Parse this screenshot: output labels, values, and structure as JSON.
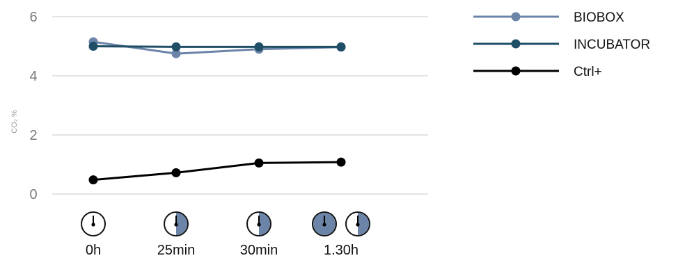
{
  "chart_data": {
    "type": "line",
    "xlabel": "",
    "ylabel": "CO₂ %",
    "ylim": [
      0,
      6
    ],
    "yticks": [
      0,
      2,
      4,
      6
    ],
    "grid": "horizontal",
    "legend": "top-right",
    "categories": [
      "0h",
      "25min",
      "30min",
      "1.30h"
    ],
    "series": [
      {
        "name": "BIOBOX",
        "color": "#6b84a8",
        "values": [
          5.15,
          4.75,
          4.9,
          4.97
        ]
      },
      {
        "name": "INCUBATOR",
        "color": "#1f4e66",
        "values": [
          5.0,
          4.98,
          4.98,
          4.98
        ]
      },
      {
        "name": "Ctrl+",
        "color": "#000000",
        "values": [
          0.48,
          0.72,
          1.05,
          1.08
        ]
      }
    ]
  },
  "clock_icons": {
    "fill_color": "#6b84a8",
    "levels": [
      [
        0
      ],
      [
        0.5
      ],
      [
        0.5
      ],
      [
        1.0,
        0.5
      ]
    ]
  }
}
